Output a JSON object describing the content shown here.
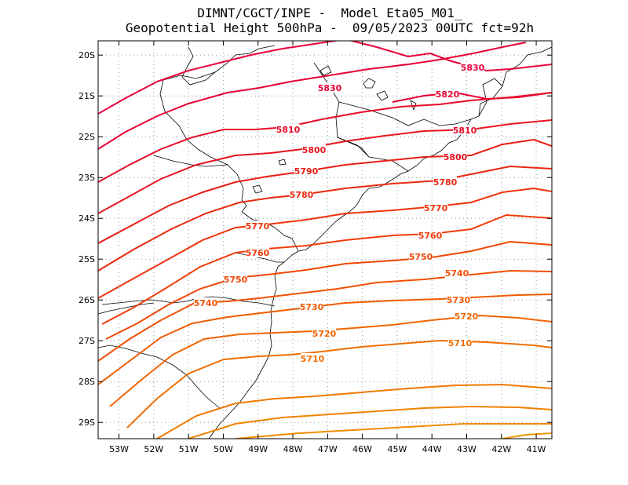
{
  "title": {
    "line1": "DIMNT/CGCT/INPE -  Model Eta05_M01_",
    "line2": "Geopotential Height 500hPa -  09/05/2023 00UTC fct=92h"
  },
  "axes": {
    "lon_labels": [
      "53W",
      "52W",
      "51W",
      "50W",
      "49W",
      "48W",
      "47W",
      "46W",
      "45W",
      "44W",
      "43W",
      "42W",
      "41W"
    ],
    "lat_labels": [
      "20S",
      "21S",
      "22S",
      "23S",
      "24S",
      "25S",
      "26S",
      "27S",
      "28S",
      "29S"
    ],
    "lon_range": [
      -53.6,
      -40.55
    ],
    "lat_range": [
      -29.4,
      -19.65
    ]
  },
  "contours": [
    {
      "value": 5830,
      "label": "5830",
      "color": "#e8003c"
    },
    {
      "value": 5820,
      "label": "5820",
      "color": "#e80032"
    },
    {
      "value": 5810,
      "label": "5810",
      "color": "#e80a28"
    },
    {
      "value": 5800,
      "label": "5800",
      "color": "#e8141e"
    },
    {
      "value": 5790,
      "label": "5790",
      "color": "#e81e14"
    },
    {
      "value": 5780,
      "label": "5780",
      "color": "#e8280f"
    },
    {
      "value": 5770,
      "label": "5770",
      "color": "#f0320a"
    },
    {
      "value": 5760,
      "label": "5760",
      "color": "#f03c0a"
    },
    {
      "value": 5750,
      "label": "5750",
      "color": "#f04605"
    },
    {
      "value": 5740,
      "label": "5740",
      "color": "#f05005"
    },
    {
      "value": 5730,
      "label": "5730",
      "color": "#f05a00"
    },
    {
      "value": 5720,
      "label": "5720",
      "color": "#f06400"
    },
    {
      "value": 5710,
      "label": "5710",
      "color": "#f06e00"
    }
  ]
}
